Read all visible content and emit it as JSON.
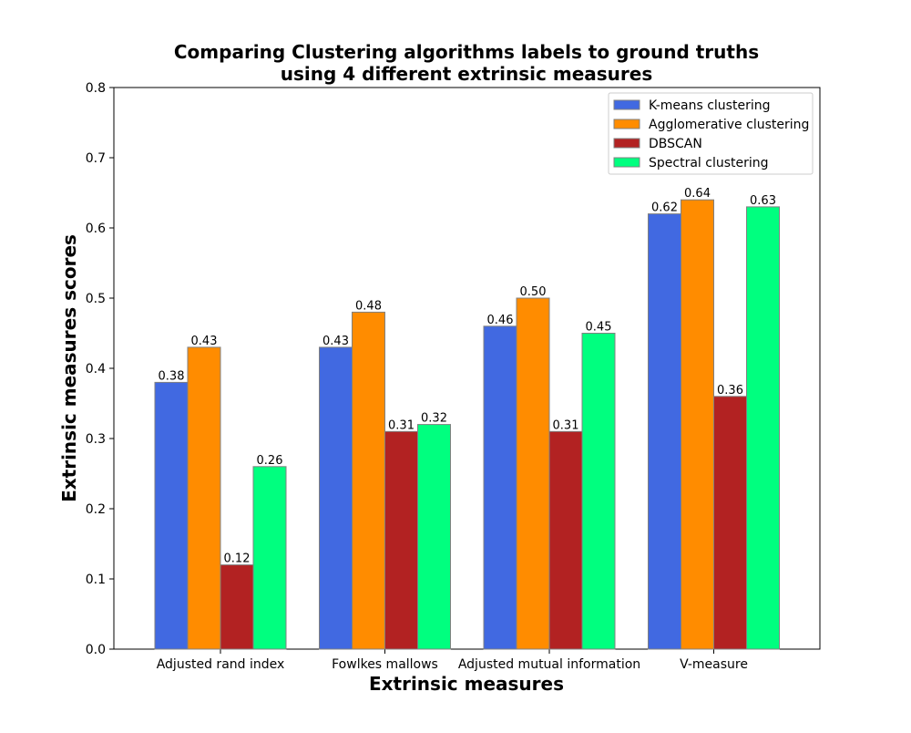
{
  "chart_data": {
    "type": "bar",
    "title": "Comparing Clustering algorithms labels to ground truths",
    "subtitle": "using 4 different extrinsic measures",
    "xlabel": "Extrinsic measures",
    "ylabel": "Extrinsic measures scores",
    "ylim": [
      0,
      0.8
    ],
    "yticks": [
      0.0,
      0.1,
      0.2,
      0.3,
      0.4,
      0.5,
      0.6,
      0.7,
      0.8
    ],
    "grid": false,
    "legend_position": "top-right",
    "categories": [
      "Adjusted rand index",
      "Fowlkes mallows",
      "Adjusted mutual information",
      "V-measure"
    ],
    "series": [
      {
        "name": "K-means clustering",
        "color": "#4169e1",
        "values": [
          0.38,
          0.43,
          0.46,
          0.62
        ],
        "labels": [
          "0.38",
          "0.43",
          "0.46",
          "0.62"
        ]
      },
      {
        "name": "Agglomerative clustering",
        "color": "#ff8c00",
        "values": [
          0.43,
          0.48,
          0.5,
          0.64
        ],
        "labels": [
          "0.43",
          "0.48",
          "0.50",
          "0.64"
        ]
      },
      {
        "name": "DBSCAN",
        "color": "#b22222",
        "values": [
          0.12,
          0.31,
          0.31,
          0.36
        ],
        "labels": [
          "0.12",
          "0.31",
          "0.31",
          "0.36"
        ]
      },
      {
        "name": "Spectral clustering",
        "color": "#00ff7f",
        "values": [
          0.26,
          0.32,
          0.45,
          0.63
        ],
        "labels": [
          "0.26",
          "0.32",
          "0.45",
          "0.63"
        ]
      }
    ]
  }
}
